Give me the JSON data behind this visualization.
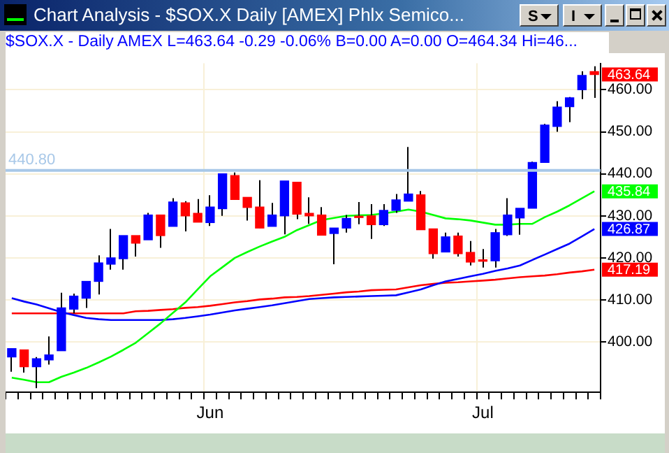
{
  "chart_data": {
    "type": "candlestick",
    "title": "Chart Analysis - $SOX.X  Daily  [AMEX] Phlx Semico...",
    "subtitle": "$SOX.X - Daily   AMEX  L=463.64  -0.29  -0.06%  B=0.00  A=0.00  O=464.34  Hi=46...",
    "categories": [
      null,
      null,
      null,
      null,
      null,
      null,
      null,
      null,
      null,
      null,
      null,
      null,
      null,
      null,
      null,
      null,
      "Jun",
      null,
      null,
      null,
      null,
      null,
      null,
      null,
      null,
      null,
      null,
      null,
      null,
      null,
      null,
      null,
      null,
      null,
      null,
      null,
      null,
      null,
      "Jul",
      null,
      null,
      null,
      null,
      null,
      null,
      null,
      null,
      null
    ],
    "ohlc": [
      [
        396.4,
        398.4,
        392.9,
        398.4
      ],
      [
        398.1,
        398.1,
        392.7,
        394.1
      ],
      [
        394.1,
        396.4,
        389.0,
        396.0
      ],
      [
        395.7,
        401.3,
        394.6,
        396.9
      ],
      [
        397.9,
        411.7,
        397.9,
        408.1
      ],
      [
        407.8,
        411.5,
        406.8,
        410.9
      ],
      [
        410.4,
        414.4,
        408.1,
        414.4
      ],
      [
        414.4,
        420.6,
        411.3,
        418.8
      ],
      [
        418.5,
        426.9,
        417.2,
        420.0
      ],
      [
        419.8,
        425.3,
        417.2,
        425.3
      ],
      [
        425.3,
        425.3,
        420.3,
        423.5
      ],
      [
        424.3,
        430.7,
        424.3,
        430.2
      ],
      [
        430.2,
        430.2,
        422.4,
        425.3
      ],
      [
        427.5,
        434.2,
        427.5,
        433.3
      ],
      [
        433.1,
        433.5,
        426.3,
        430.0
      ],
      [
        430.6,
        434.0,
        428.5,
        428.5
      ],
      [
        428.4,
        434.9,
        427.6,
        432.1
      ],
      [
        431.7,
        440.0,
        430.0,
        440.0
      ],
      [
        439.6,
        440.3,
        433.9,
        433.9
      ],
      [
        434.4,
        434.4,
        428.9,
        432.0
      ],
      [
        432.1,
        438.5,
        427.1,
        427.1
      ],
      [
        427.5,
        433.1,
        427.5,
        430.2
      ],
      [
        430.0,
        438.3,
        425.6,
        438.3
      ],
      [
        438.0,
        438.0,
        429.2,
        430.4
      ],
      [
        430.6,
        434.4,
        428.1,
        430.0
      ],
      [
        430.2,
        432.1,
        425.4,
        425.4
      ],
      [
        425.8,
        427.1,
        418.5,
        427.1
      ],
      [
        427.1,
        430.2,
        426.0,
        429.4
      ],
      [
        429.8,
        433.3,
        428.0,
        429.6
      ],
      [
        430.0,
        432.8,
        424.5,
        427.9
      ],
      [
        427.9,
        432.8,
        427.6,
        431.3
      ],
      [
        431.3,
        435.2,
        430.7,
        433.8
      ],
      [
        433.5,
        446.4,
        433.5,
        435.2
      ],
      [
        435.0,
        435.9,
        426.7,
        426.7
      ],
      [
        426.9,
        426.9,
        419.8,
        421.0
      ],
      [
        421.4,
        426.0,
        421.4,
        425.0
      ],
      [
        425.2,
        426.0,
        420.3,
        421.0
      ],
      [
        421.3,
        424.0,
        418.2,
        419.0
      ],
      [
        419.4,
        422.1,
        417.7,
        419.2
      ],
      [
        419.3,
        426.9,
        417.7,
        426.0
      ],
      [
        425.5,
        434.2,
        425.2,
        430.2
      ],
      [
        429.5,
        431.8,
        425.5,
        431.8
      ],
      [
        431.8,
        442.9,
        431.8,
        442.7
      ],
      [
        442.7,
        451.9,
        442.7,
        451.6
      ],
      [
        451.3,
        457.3,
        450.0,
        455.9
      ],
      [
        456.0,
        458.3,
        452.3,
        458.1
      ],
      [
        460.0,
        464.4,
        457.8,
        463.4
      ],
      [
        464.34,
        465.6,
        458.1,
        463.64
      ]
    ],
    "colors": [
      "#0000ff",
      "#ff0000",
      "#0000ff",
      "#0000ff",
      "#0000ff",
      "#0000ff",
      "#0000ff",
      "#0000ff",
      "#0000ff",
      "#0000ff",
      "#ff0000",
      "#0000ff",
      "#ff0000",
      "#0000ff",
      "#ff0000",
      "#ff0000",
      "#0000ff",
      "#0000ff",
      "#ff0000",
      "#ff0000",
      "#ff0000",
      "#0000ff",
      "#0000ff",
      "#ff0000",
      "#ff0000",
      "#ff0000",
      "#0000ff",
      "#0000ff",
      "#ff0000",
      "#ff0000",
      "#0000ff",
      "#0000ff",
      "#0000ff",
      "#ff0000",
      "#ff0000",
      "#0000ff",
      "#ff0000",
      "#ff0000",
      "#ff0000",
      "#0000ff",
      "#0000ff",
      "#0000ff",
      "#0000ff",
      "#0000ff",
      "#0000ff",
      "#0000ff",
      "#0000ff",
      "#ff0000"
    ],
    "series": [
      {
        "type": "line",
        "color": "#00ff00",
        "values": [
          391.5,
          391.0,
          390.4,
          390.4,
          391.7,
          392.7,
          393.8,
          395.1,
          396.5,
          398.1,
          399.8,
          402.1,
          404.4,
          406.9,
          409.4,
          412.5,
          415.6,
          417.8,
          420.0,
          421.4,
          422.7,
          423.9,
          425.0,
          426.6,
          427.8,
          429.0,
          429.5,
          430.0,
          430.1,
          430.2,
          430.6,
          431.0,
          431.5,
          431.0,
          430.2,
          429.4,
          429.2,
          428.9,
          428.4,
          427.9,
          427.9,
          428.1,
          428.1,
          429.7,
          431.0,
          432.5,
          434.2,
          435.84
        ],
        "value_labels": [
          null,
          null,
          null,
          null,
          null,
          null,
          null,
          null,
          null,
          null,
          null,
          null,
          null,
          null,
          null,
          null,
          null,
          null,
          null,
          null,
          null,
          null,
          null,
          null,
          null,
          null,
          null,
          null,
          null,
          null,
          null,
          null,
          null,
          null,
          null,
          null,
          null,
          null,
          null,
          null,
          null,
          null,
          null,
          null,
          null,
          null,
          null,
          "435.84"
        ]
      },
      {
        "type": "line",
        "color": "#0000ff",
        "values": [
          410.4,
          409.6,
          408.9,
          408.0,
          407.1,
          406.4,
          405.7,
          405.4,
          405.2,
          405.2,
          405.2,
          405.2,
          405.2,
          405.4,
          405.7,
          406.1,
          406.5,
          407.0,
          407.5,
          407.9,
          408.3,
          408.7,
          409.2,
          409.7,
          410.2,
          410.4,
          410.6,
          410.7,
          410.8,
          410.9,
          411.0,
          411.1,
          411.8,
          412.5,
          413.5,
          414.4,
          415.0,
          415.6,
          416.2,
          416.9,
          417.5,
          418.2,
          419.5,
          420.8,
          422.1,
          423.4,
          425.1,
          426.87
        ],
        "value_labels": [
          null,
          null,
          null,
          null,
          null,
          null,
          null,
          null,
          null,
          null,
          null,
          null,
          null,
          null,
          null,
          null,
          null,
          null,
          null,
          null,
          null,
          null,
          null,
          null,
          null,
          null,
          null,
          null,
          null,
          null,
          null,
          null,
          null,
          null,
          null,
          null,
          null,
          null,
          null,
          null,
          null,
          null,
          null,
          null,
          null,
          null,
          null,
          "426.87"
        ]
      },
      {
        "type": "line",
        "color": "#ff0000",
        "values": [
          406.8,
          406.8,
          406.8,
          406.8,
          406.8,
          406.8,
          406.8,
          406.8,
          406.8,
          406.8,
          407.3,
          407.4,
          407.6,
          407.8,
          408.1,
          408.3,
          408.6,
          409.0,
          409.4,
          409.7,
          410.1,
          410.3,
          410.6,
          410.7,
          410.9,
          411.2,
          411.5,
          411.8,
          412.0,
          412.3,
          412.4,
          412.5,
          413.0,
          413.5,
          413.8,
          414.1,
          414.2,
          414.4,
          414.6,
          414.8,
          415.1,
          415.4,
          415.6,
          415.8,
          416.1,
          416.5,
          416.8,
          417.19
        ],
        "value_labels": [
          null,
          null,
          null,
          null,
          null,
          null,
          null,
          null,
          null,
          null,
          null,
          null,
          null,
          null,
          null,
          null,
          null,
          null,
          null,
          null,
          null,
          null,
          null,
          null,
          null,
          null,
          null,
          null,
          null,
          null,
          null,
          null,
          null,
          null,
          null,
          null,
          null,
          null,
          null,
          null,
          null,
          null,
          null,
          null,
          null,
          null,
          null,
          "417.19"
        ]
      }
    ],
    "ylim": [
      388,
      466.3
    ],
    "yticks": [
      {
        "value": 400,
        "label": "400.00"
      },
      {
        "value": 410,
        "label": "410.00"
      },
      {
        "value": 420,
        "label": "420.00"
      },
      {
        "value": 430,
        "label": "430.00"
      },
      {
        "value": 440,
        "label": "440.00"
      },
      {
        "value": 450,
        "label": "450.00"
      },
      {
        "value": 460,
        "label": "460.00"
      }
    ],
    "grid": true,
    "marker": "none",
    "line_style": "solid",
    "ref_lines": [
      {
        "axis": "y",
        "value": 440.8,
        "label": "440.80",
        "color": "#a8c8e8"
      }
    ],
    "annotations": [
      "S",
      "I",
      "463.64"
    ]
  }
}
